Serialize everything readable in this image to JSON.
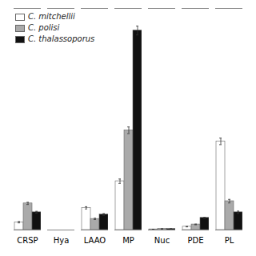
{
  "chart_data": {
    "type": "bar",
    "categories": [
      "CRSP",
      "Hya",
      "LAAO",
      "MP",
      "Nuc",
      "PDE",
      "PL"
    ],
    "series": [
      {
        "name": "C. mitchellii",
        "color": "#ffffff",
        "values": [
          3.5,
          0.0,
          10.0,
          22.0,
          0.3,
          1.5,
          40.0
        ],
        "errors": [
          0.3,
          0.0,
          0.5,
          1.0,
          0.05,
          0.1,
          1.5
        ]
      },
      {
        "name": "C. polisi",
        "color": "#aaaaaa",
        "values": [
          12.0,
          0.0,
          5.0,
          45.0,
          0.5,
          2.5,
          13.0
        ],
        "errors": [
          0.5,
          0.0,
          0.3,
          1.5,
          0.05,
          0.15,
          0.8
        ]
      },
      {
        "name": "C. thalassoporus",
        "color": "#111111",
        "values": [
          8.0,
          0.0,
          7.0,
          90.0,
          0.5,
          5.5,
          8.0
        ],
        "errors": [
          0.4,
          0.0,
          0.4,
          2.0,
          0.05,
          0.2,
          0.5
        ]
      }
    ],
    "ylim": [
      0,
      100
    ],
    "legend": "upper left",
    "tick_labels": "x"
  }
}
